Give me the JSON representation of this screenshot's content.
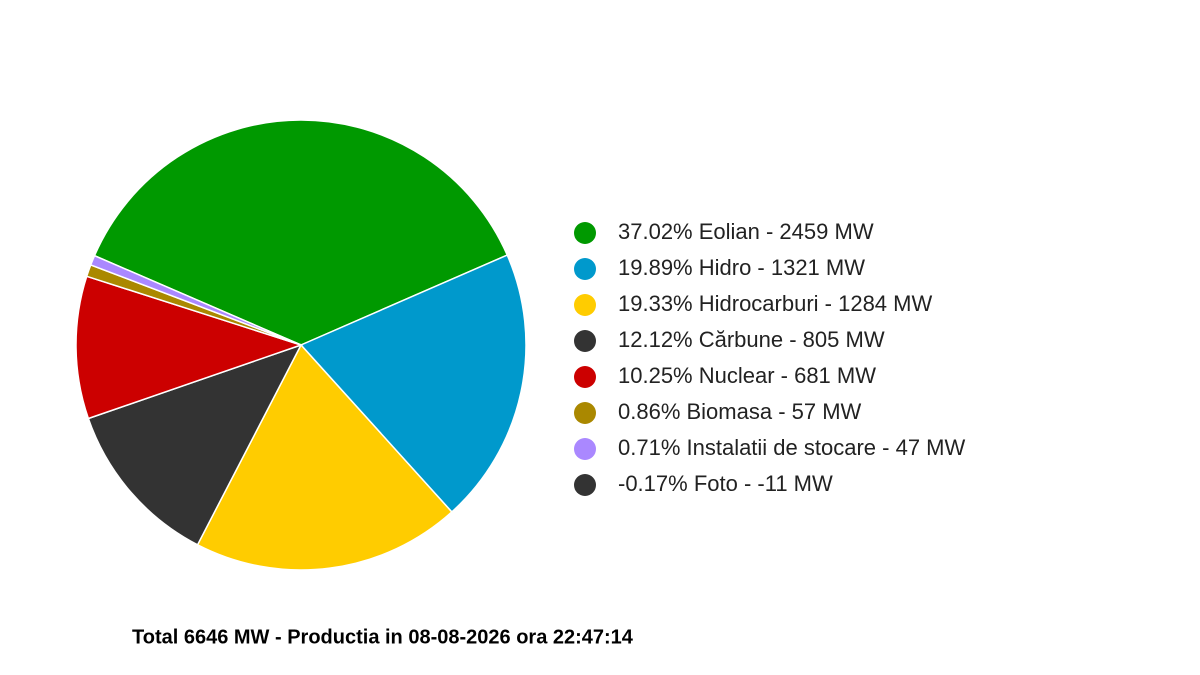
{
  "chart_data": {
    "type": "pie",
    "caption": "Total 6646 MW - Productia in 08-08-2026 ora 22:47:14",
    "categories": [
      "Eolian",
      "Hidro",
      "Hidrocarburi",
      "Cărbune",
      "Nuclear",
      "Biomasa",
      "Instalatii de stocare",
      "Foto"
    ],
    "legend_labels": [
      "37.02% Eolian - 2459 MW",
      "19.89% Hidro - 1321 MW",
      "19.33% Hidrocarburi - 1284 MW",
      "12.12% Cărbune - 805 MW",
      "10.25% Nuclear - 681 MW",
      "0.86% Biomasa - 57 MW",
      "0.71% Instalatii de stocare - 47 MW",
      "-0.17% Foto - -11 MW"
    ],
    "values": [
      2459,
      1321,
      1284,
      805,
      681,
      57,
      47,
      -11
    ],
    "colors": [
      "#009900",
      "#0099cc",
      "#ffcc00",
      "#333333",
      "#cc0000",
      "#aa8800",
      "#aa88ff",
      "#333333"
    ],
    "legend_position": "right"
  }
}
